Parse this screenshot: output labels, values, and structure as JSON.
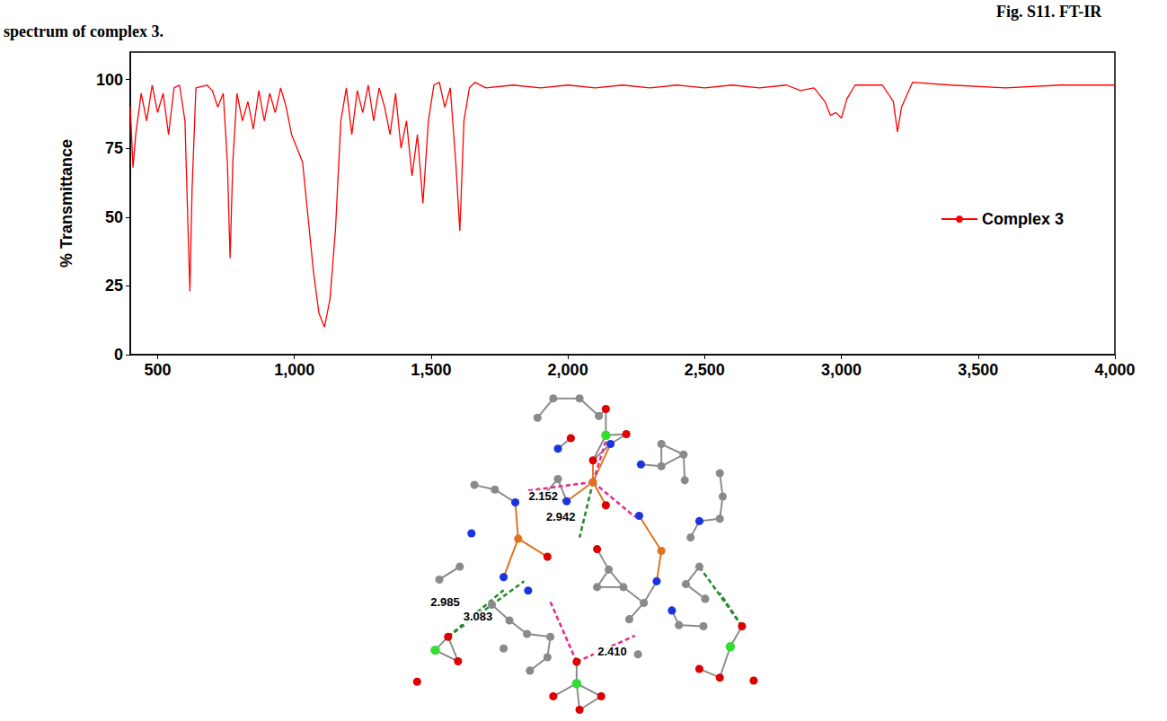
{
  "caption": "Fig. S11. FT-IR spectrum of complex 3.",
  "chart_data": {
    "type": "line",
    "x": [
      400,
      410,
      420,
      440,
      460,
      480,
      500,
      520,
      540,
      560,
      580,
      600,
      610,
      618,
      626,
      640,
      680,
      700,
      720,
      740,
      755,
      765,
      775,
      790,
      810,
      830,
      850,
      870,
      890,
      910,
      930,
      950,
      970,
      990,
      1010,
      1030,
      1050,
      1070,
      1090,
      1110,
      1130,
      1150,
      1170,
      1190,
      1210,
      1230,
      1250,
      1270,
      1290,
      1310,
      1330,
      1350,
      1370,
      1390,
      1410,
      1430,
      1450,
      1470,
      1490,
      1510,
      1530,
      1550,
      1570,
      1590,
      1605,
      1620,
      1640,
      1660,
      1700,
      1800,
      1900,
      2000,
      2100,
      2200,
      2300,
      2400,
      2500,
      2600,
      2700,
      2800,
      2850,
      2900,
      2940,
      2960,
      2980,
      3000,
      3020,
      3050,
      3150,
      3190,
      3205,
      3220,
      3260,
      3400,
      3600,
      3800,
      4000
    ],
    "series": [
      {
        "name": "Complex 3",
        "color": "#ff0000",
        "values": [
          90,
          68,
          80,
          95,
          85,
          98,
          88,
          95,
          80,
          97,
          98,
          85,
          50,
          23,
          60,
          97,
          98,
          96,
          90,
          95,
          70,
          35,
          70,
          95,
          85,
          92,
          82,
          96,
          85,
          95,
          88,
          97,
          90,
          80,
          75,
          70,
          50,
          30,
          15,
          10,
          20,
          45,
          85,
          97,
          80,
          96,
          88,
          98,
          85,
          97,
          90,
          80,
          95,
          75,
          85,
          65,
          80,
          55,
          85,
          98,
          99,
          90,
          97,
          70,
          45,
          85,
          97,
          99,
          97,
          98,
          97,
          98,
          97,
          98,
          97,
          98,
          97,
          98,
          97,
          98,
          96,
          97,
          92,
          87,
          88,
          86,
          93,
          98,
          98,
          92,
          81,
          90,
          99,
          98,
          97,
          98,
          98
        ]
      }
    ],
    "xlim": [
      400,
      4000
    ],
    "xticks": [
      500,
      1000,
      1500,
      2000,
      2500,
      3000,
      3500,
      4000
    ],
    "ylim": [
      0,
      110
    ],
    "yticks": [
      0,
      25,
      50,
      75,
      100
    ],
    "y_label": "% Transmittance",
    "grid": false,
    "legend": "right"
  },
  "structure": {
    "distance_labels": [
      "2.152",
      "2.942",
      "2.985",
      "3.083",
      "2.410"
    ]
  }
}
